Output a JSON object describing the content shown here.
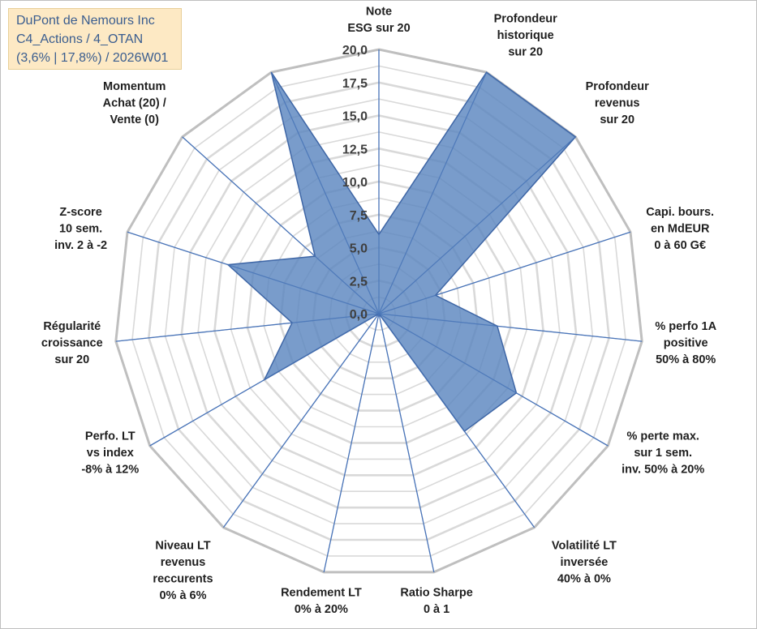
{
  "header": {
    "line1": "DuPont de Nemours Inc",
    "line2": "C4_Actions / 4_OTAN",
    "line3": "(3,6% | 17,8%) / 2026W01"
  },
  "colors": {
    "fill": "#5b86bf",
    "stroke": "#3e66a6",
    "spoke": "#4a74b8",
    "grid_outer": "#bfbfbf",
    "grid_inner": "#d9d9d9"
  },
  "chart_data": {
    "type": "radar",
    "rmax": 20,
    "grid_step": 1.25,
    "ticks": [
      "0,0",
      "2,5",
      "5,0",
      "7,5",
      "10,0",
      "12,5",
      "15,0",
      "17,5",
      "20,0"
    ],
    "tick_values": [
      0,
      2.5,
      5,
      7.5,
      10,
      12.5,
      15,
      17.5,
      20
    ],
    "axes": [
      {
        "label": [
          "Note",
          "ESG sur 20"
        ],
        "value": 6
      },
      {
        "label": [
          "Profondeur",
          "historique",
          "sur 20"
        ],
        "value": 20
      },
      {
        "label": [
          "Profondeur",
          "revenus",
          "sur 20"
        ],
        "value": 20
      },
      {
        "label": [
          "Capi. bours.",
          "en MdEUR",
          "0 à 60 G€"
        ],
        "value": 4.5
      },
      {
        "label": [
          "% perfo 1A",
          "positive",
          "50% à 80%"
        ],
        "value": 9
      },
      {
        "label": [
          "% perte max.",
          "sur 1 sem.",
          "inv. 50% à 20%"
        ],
        "value": 12
      },
      {
        "label": [
          "Volatilité LT",
          "inversée",
          "40% à 0%"
        ],
        "value": 11
      },
      {
        "label": [
          "Ratio Sharpe",
          "0 à 1"
        ],
        "value": 0
      },
      {
        "label": [
          "Rendement LT",
          "0% à 20%"
        ],
        "value": 0
      },
      {
        "label": [
          "Niveau LT",
          "revenus",
          "reccurents",
          "0% à 6%"
        ],
        "value": 0
      },
      {
        "label": [
          "Perfo. LT",
          "vs index",
          "-8% à 12%"
        ],
        "value": 10
      },
      {
        "label": [
          "Régularité",
          "croissance",
          "sur 20"
        ],
        "value": 6.6
      },
      {
        "label": [
          "Z-score",
          "10 sem.",
          "inv. 2 à -2"
        ],
        "value": 12
      },
      {
        "label": [
          "Momentum",
          "Achat (20) /",
          "Vente (0)"
        ],
        "value": 6.5
      },
      {
        "label": [],
        "value": 20
      }
    ]
  }
}
